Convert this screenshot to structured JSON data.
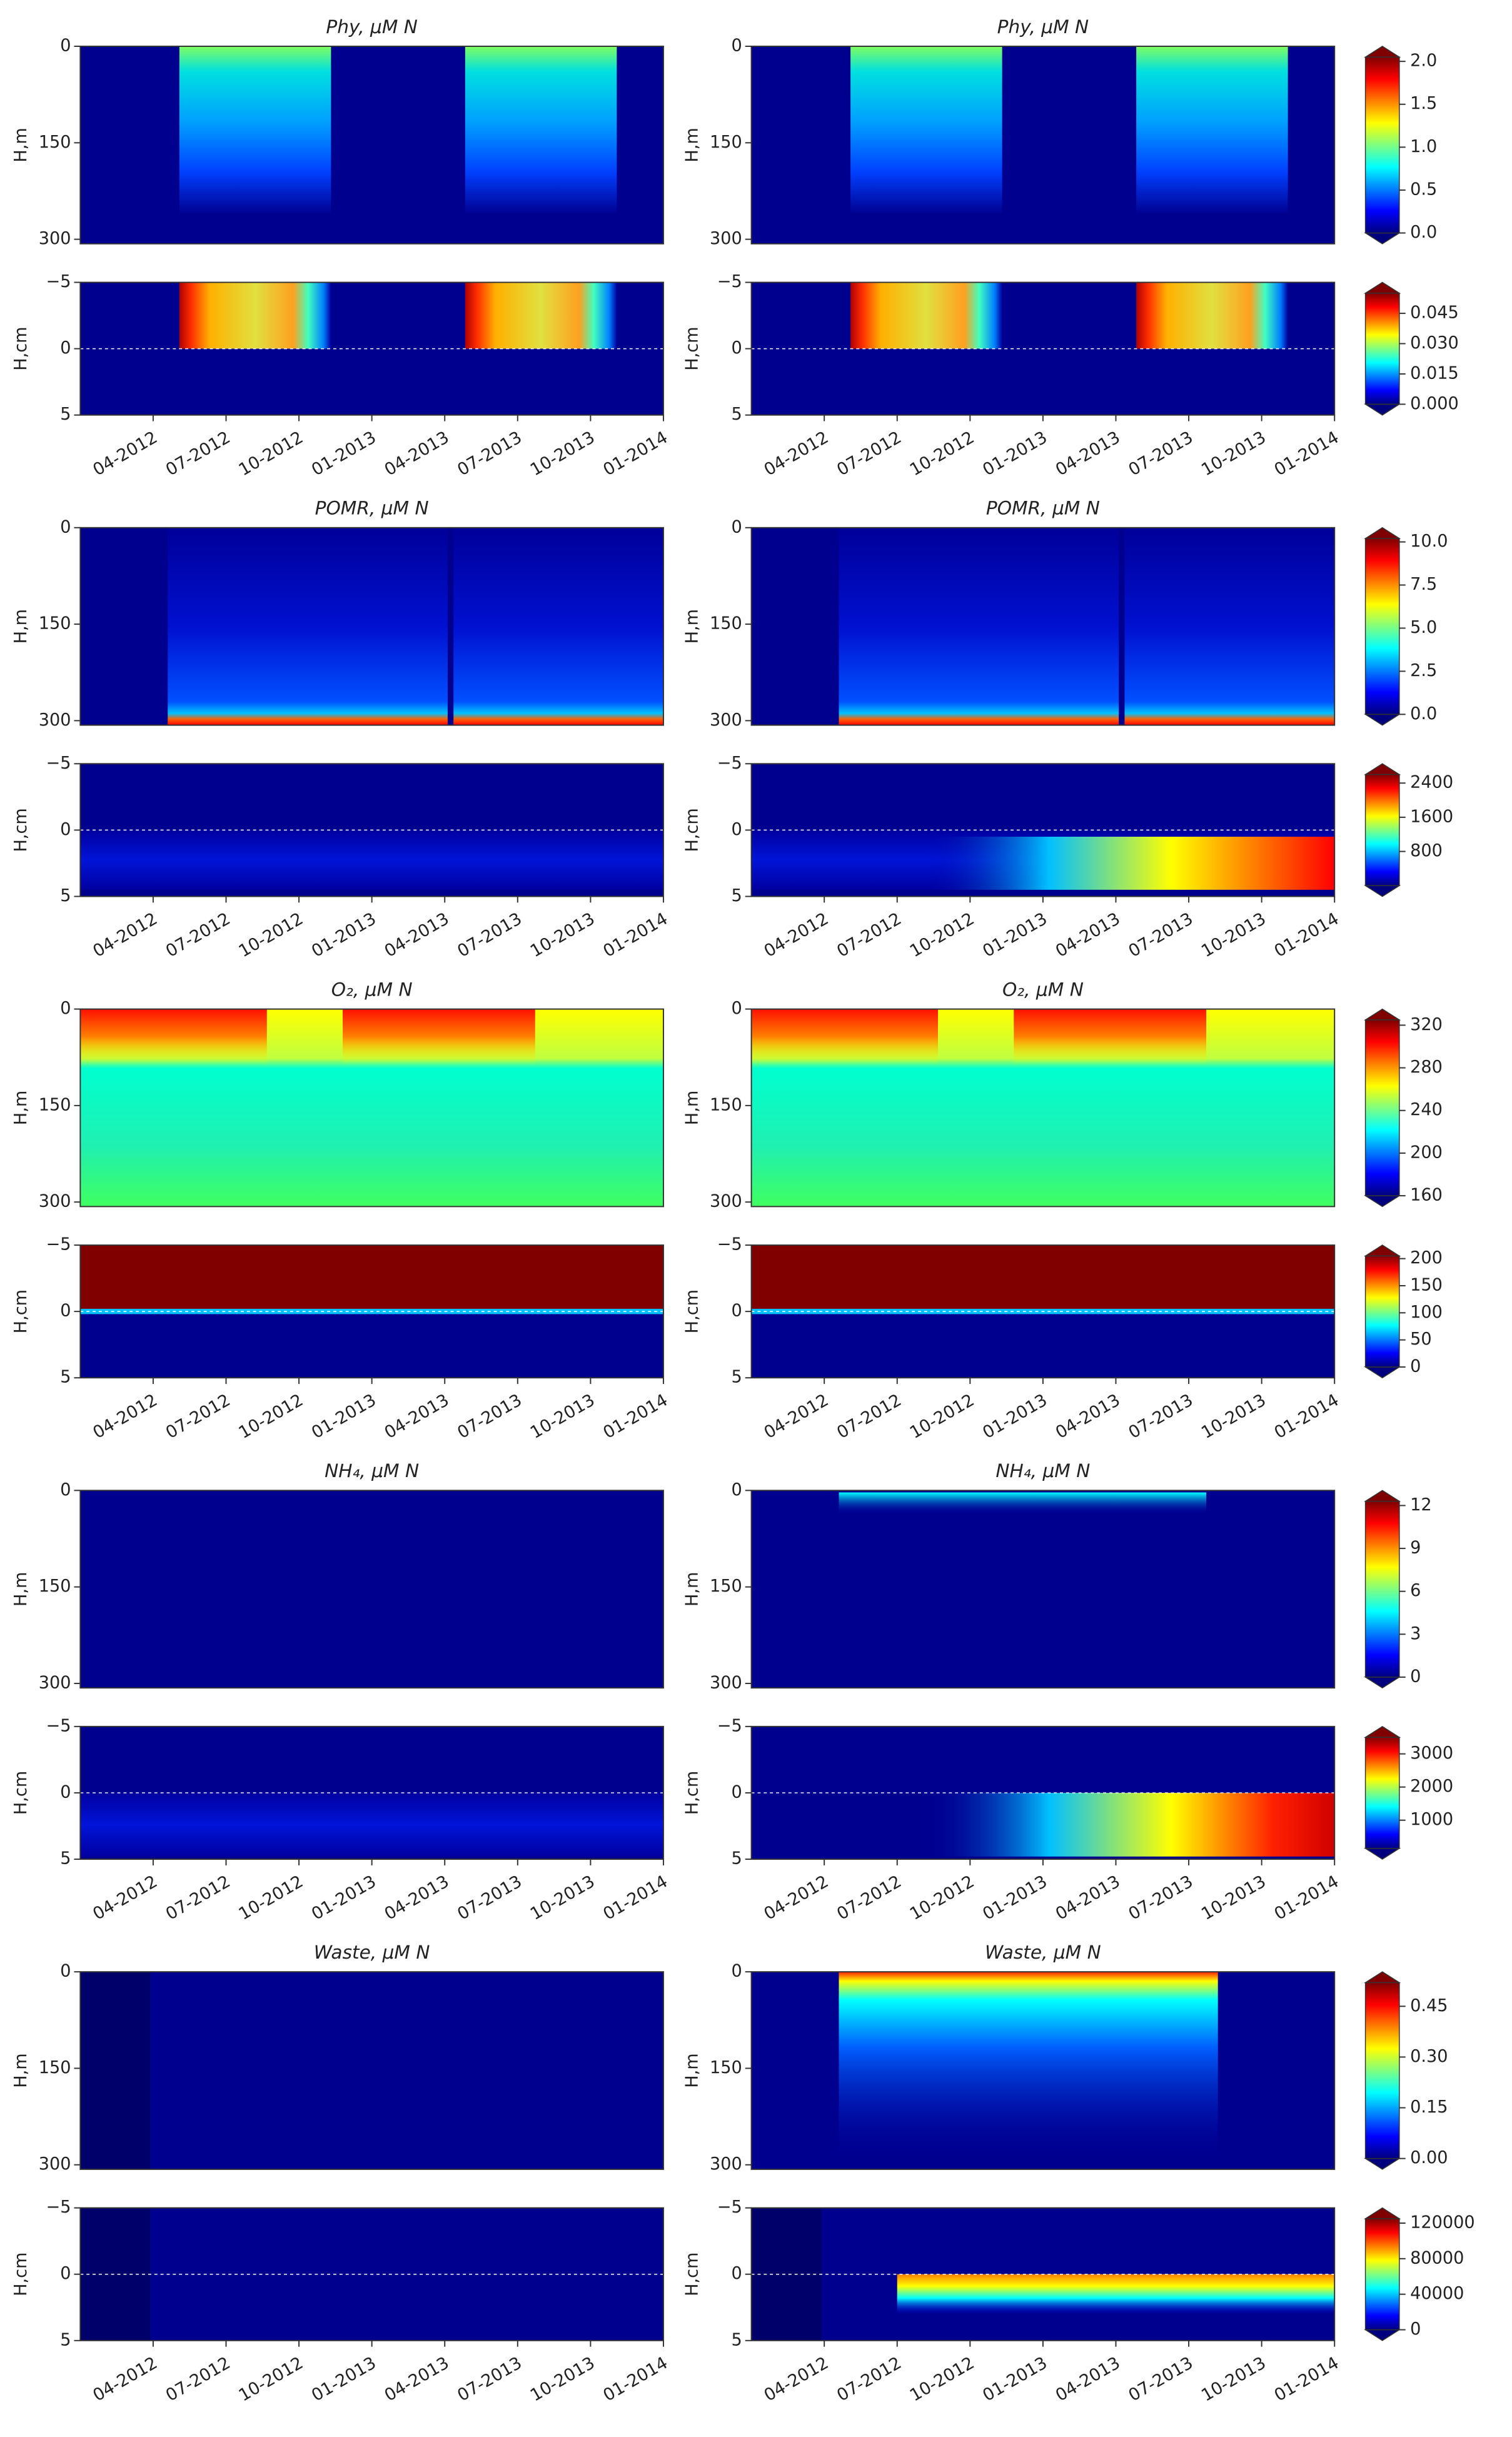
{
  "chart_data": [
    {
      "type": "contour",
      "title": "Phy,  μM N",
      "ylabel": "H,m",
      "ylim": [
        0,
        307
      ],
      "yticks": [
        0,
        150,
        300
      ],
      "colorbar": {
        "lim": [
          0,
          2.05
        ],
        "ticks": [
          {
            "value": 0,
            "label": "0.0"
          },
          {
            "value": 0.5,
            "label": "0.5"
          },
          {
            "value": 1,
            "label": "1.0"
          },
          {
            "value": 1.5,
            "label": "1.5"
          },
          {
            "value": 2,
            "label": "2.0"
          }
        ]
      }
    },
    {
      "type": "contour",
      "ylabel": "H,cm",
      "ylim": [
        -5,
        5
      ],
      "yticks": [
        {
          "value": -5,
          "label": "−5"
        },
        0,
        5
      ],
      "xlim": [
        "01-2012",
        "01-2014"
      ],
      "xticks": [
        "04-2012",
        "07-2012",
        "10-2012",
        "01-2013",
        "04-2013",
        "07-2013",
        "10-2013",
        "01-2014"
      ],
      "colorbar": {
        "lim": [
          0,
          0.055
        ],
        "ticks": [
          {
            "value": 0,
            "label": "0.000"
          },
          {
            "value": 0.015,
            "label": "0.015"
          },
          {
            "value": 0.03,
            "label": "0.030"
          },
          {
            "value": 0.045,
            "label": "0.045"
          }
        ]
      }
    },
    {
      "type": "contour",
      "title": "POMR,  μM N",
      "ylabel": "H,m",
      "ylim": [
        0,
        307
      ],
      "yticks": [
        0,
        150,
        300
      ],
      "colorbar": {
        "lim": [
          0,
          10.2
        ],
        "ticks": [
          {
            "value": 0,
            "label": "0.0"
          },
          {
            "value": 2.5,
            "label": "2.5"
          },
          {
            "value": 5,
            "label": "5.0"
          },
          {
            "value": 7.5,
            "label": "7.5"
          },
          {
            "value": 10,
            "label": "10.0"
          }
        ]
      }
    },
    {
      "type": "contour",
      "ylabel": "H,cm",
      "ylim": [
        -5,
        5
      ],
      "yticks": [
        {
          "value": -5,
          "label": "−5"
        },
        0,
        5
      ],
      "xlim": [
        "01-2012",
        "01-2014"
      ],
      "xticks": [
        "04-2012",
        "07-2012",
        "10-2012",
        "01-2013",
        "04-2013",
        "07-2013",
        "10-2013",
        "01-2014"
      ],
      "colorbar": {
        "lim": [
          0,
          2600
        ],
        "ticks": [
          800,
          1600,
          2400
        ]
      }
    },
    {
      "type": "contour",
      "title": "O₂,  μM N",
      "ylabel": "H,m",
      "ylim": [
        0,
        307
      ],
      "yticks": [
        0,
        150,
        300
      ],
      "colorbar": {
        "lim": [
          160,
          325
        ],
        "ticks": [
          160,
          200,
          240,
          280,
          320
        ]
      }
    },
    {
      "type": "contour",
      "ylabel": "H,cm",
      "ylim": [
        -5,
        5
      ],
      "yticks": [
        {
          "value": -5,
          "label": "−5"
        },
        0,
        5
      ],
      "xlim": [
        "01-2012",
        "01-2014"
      ],
      "xticks": [
        "04-2012",
        "07-2012",
        "10-2012",
        "01-2013",
        "04-2013",
        "07-2013",
        "10-2013",
        "01-2014"
      ],
      "colorbar": {
        "lim": [
          0,
          205
        ],
        "ticks": [
          0,
          50,
          100,
          150,
          200
        ]
      }
    },
    {
      "type": "contour",
      "title": "NH₄,  μM N",
      "ylabel": "H,m",
      "ylim": [
        0,
        307
      ],
      "yticks": [
        0,
        150,
        300
      ],
      "colorbar": {
        "lim": [
          0,
          12.3
        ],
        "ticks": [
          0,
          3,
          6,
          9,
          12
        ]
      }
    },
    {
      "type": "contour",
      "ylabel": "H,cm",
      "ylim": [
        -5,
        5
      ],
      "yticks": [
        {
          "value": -5,
          "label": "−5"
        },
        0,
        5
      ],
      "xlim": [
        "01-2012",
        "01-2014"
      ],
      "xticks": [
        "04-2012",
        "07-2012",
        "10-2012",
        "01-2013",
        "04-2013",
        "07-2013",
        "10-2013",
        "01-2014"
      ],
      "colorbar": {
        "lim": [
          150,
          3500
        ],
        "ticks": [
          1000,
          2000,
          3000
        ]
      }
    },
    {
      "type": "contour",
      "title": "Waste,  μM N",
      "ylabel": "H,m",
      "ylim": [
        0,
        307
      ],
      "yticks": [
        0,
        150,
        300
      ],
      "colorbar": {
        "lim": [
          0,
          0.52
        ],
        "ticks": [
          {
            "value": 0,
            "label": "0.00"
          },
          {
            "value": 0.15,
            "label": "0.15"
          },
          {
            "value": 0.3,
            "label": "0.30"
          },
          {
            "value": 0.45,
            "label": "0.45"
          }
        ]
      }
    },
    {
      "type": "contour",
      "ylabel": "H,cm",
      "ylim": [
        -5,
        5
      ],
      "yticks": [
        {
          "value": -5,
          "label": "−5"
        },
        0,
        5
      ],
      "xlim": [
        "01-2012",
        "01-2014"
      ],
      "xticks": [
        "04-2012",
        "07-2012",
        "10-2012",
        "01-2013",
        "04-2013",
        "07-2013",
        "10-2013",
        "01-2014"
      ],
      "colorbar": {
        "lim": [
          0,
          125000
        ],
        "ticks": [
          0,
          40000,
          80000,
          120000
        ]
      }
    }
  ]
}
